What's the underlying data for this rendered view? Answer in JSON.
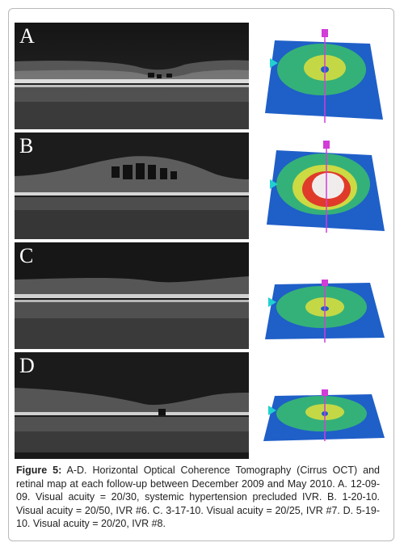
{
  "panels": [
    {
      "label": "A"
    },
    {
      "label": "B"
    },
    {
      "label": "C"
    },
    {
      "label": "D"
    }
  ],
  "caption": {
    "label": "Figure 5:",
    "text": " A-D. Horizontal Optical Coherence Tomography (Cirrus OCT) and retinal map at each follow-up between December 2009 and May 2010. A. 12-09-09. Visual acuity = 20/30, systemic hypertension precluded IVR. B. 1-20-10. Visual acuity = 20/50, IVR #6. C. 3-17-10. Visual acuity = 20/25, IVR #7. D. 5-19-10. Visual acuity = 20/20, IVR #8."
  },
  "colors": {
    "map_blue": "#1f5fc8",
    "map_green": "#38c06a",
    "map_yellow": "#e8e23a",
    "map_red": "#e03a2a",
    "marker_magenta": "#d23cd8",
    "marker_cyan": "#22d0d0"
  }
}
